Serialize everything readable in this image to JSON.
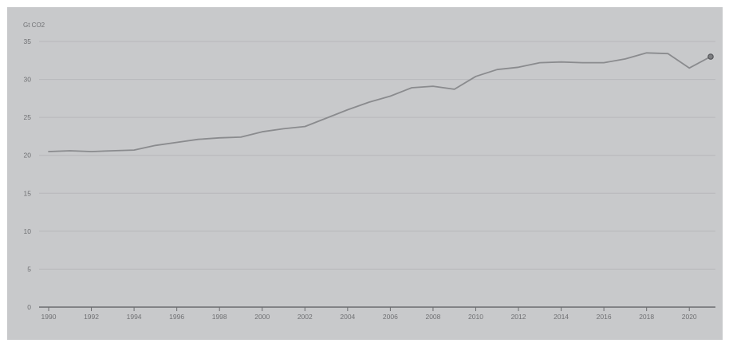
{
  "chart_data": {
    "type": "line",
    "title": "",
    "xlabel": "",
    "ylabel": "Gt CO2",
    "xlim": [
      1990,
      2021
    ],
    "ylim": [
      0,
      35
    ],
    "yticks": [
      0,
      5,
      10,
      15,
      20,
      25,
      30,
      35
    ],
    "xticks": [
      1990,
      1992,
      1994,
      1996,
      1998,
      2000,
      2002,
      2004,
      2006,
      2008,
      2010,
      2012,
      2014,
      2016,
      2018,
      2020
    ],
    "grid": true,
    "legend": "none",
    "colors": {
      "background": "#c8c9cb",
      "line": "#8a8b8e",
      "grid": "#b7b8bb",
      "axis": "#6b6c6f",
      "text": "#6f7073"
    },
    "series": [
      {
        "x": [
          1990,
          1991,
          1992,
          1993,
          1994,
          1995,
          1996,
          1997,
          1998,
          1999,
          2000,
          2001,
          2002,
          2003,
          2004,
          2005,
          2006,
          2007,
          2008,
          2009,
          2010,
          2011,
          2012,
          2013,
          2014,
          2015,
          2016,
          2017,
          2018,
          2019,
          2020,
          2021
        ],
        "values": [
          20.5,
          20.6,
          20.5,
          20.6,
          20.7,
          21.3,
          21.7,
          22.1,
          22.3,
          22.4,
          23.1,
          23.5,
          23.8,
          24.9,
          26.0,
          27.0,
          27.8,
          28.9,
          29.1,
          28.7,
          30.4,
          31.3,
          31.6,
          32.2,
          32.3,
          32.2,
          32.2,
          32.7,
          33.5,
          33.4,
          31.5,
          33.0
        ]
      }
    ],
    "end_marker": {
      "x": 2021,
      "y": 33.0
    }
  }
}
